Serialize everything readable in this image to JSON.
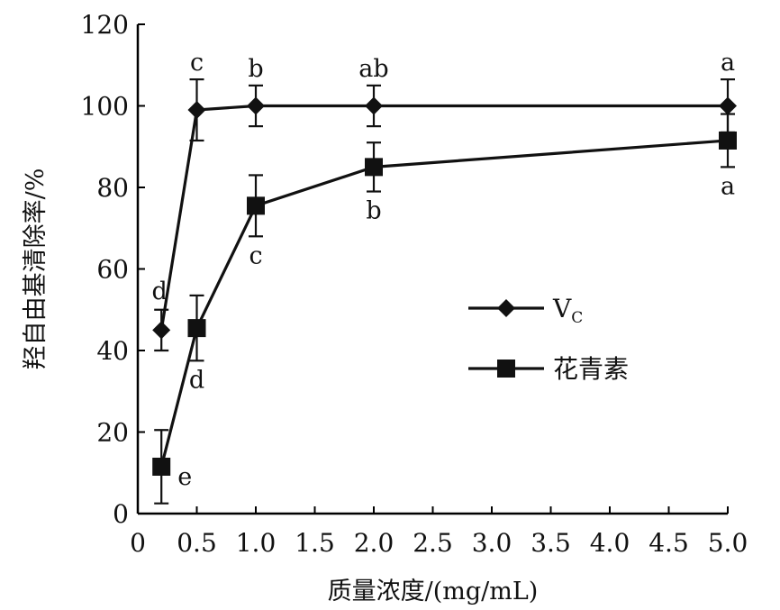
{
  "chart_data": {
    "type": "line",
    "xlabel": "质量浓度/(mg/mL)",
    "ylabel": "羟自由基清除率/%",
    "xlim": [
      0,
      5.0
    ],
    "ylim": [
      0,
      120
    ],
    "xticks": [
      "0",
      "0.5",
      "1.0",
      "1.5",
      "2.0",
      "2.5",
      "3.0",
      "3.5",
      "4.0",
      "4.5",
      "5.0"
    ],
    "yticks": [
      "0",
      "20",
      "40",
      "60",
      "80",
      "100",
      "120"
    ],
    "grid": false,
    "legend_position": "center-right",
    "series": [
      {
        "name": "Vc",
        "legend_main": "V",
        "legend_sub": "C",
        "marker": "diamond",
        "x": [
          0.2,
          0.5,
          1.0,
          2.0,
          5.0
        ],
        "y": [
          45,
          99,
          100,
          100,
          100
        ],
        "err": [
          5,
          7.5,
          5,
          5,
          6.5
        ],
        "labels": [
          "d",
          "c",
          "b",
          "ab",
          "a"
        ],
        "label_side": [
          "above",
          "above",
          "above",
          "above",
          "above"
        ]
      },
      {
        "name": "花青素",
        "legend_main": "花青素",
        "legend_sub": "",
        "marker": "square",
        "x": [
          0.2,
          0.5,
          1.0,
          2.0,
          5.0
        ],
        "y": [
          11.5,
          45.5,
          75.5,
          85,
          91.5
        ],
        "err": [
          9,
          8,
          7.5,
          6,
          6.5
        ],
        "labels": [
          "e",
          "d",
          "c",
          "b",
          "a"
        ],
        "label_side": [
          "right",
          "below",
          "below",
          "below",
          "below"
        ]
      }
    ]
  }
}
